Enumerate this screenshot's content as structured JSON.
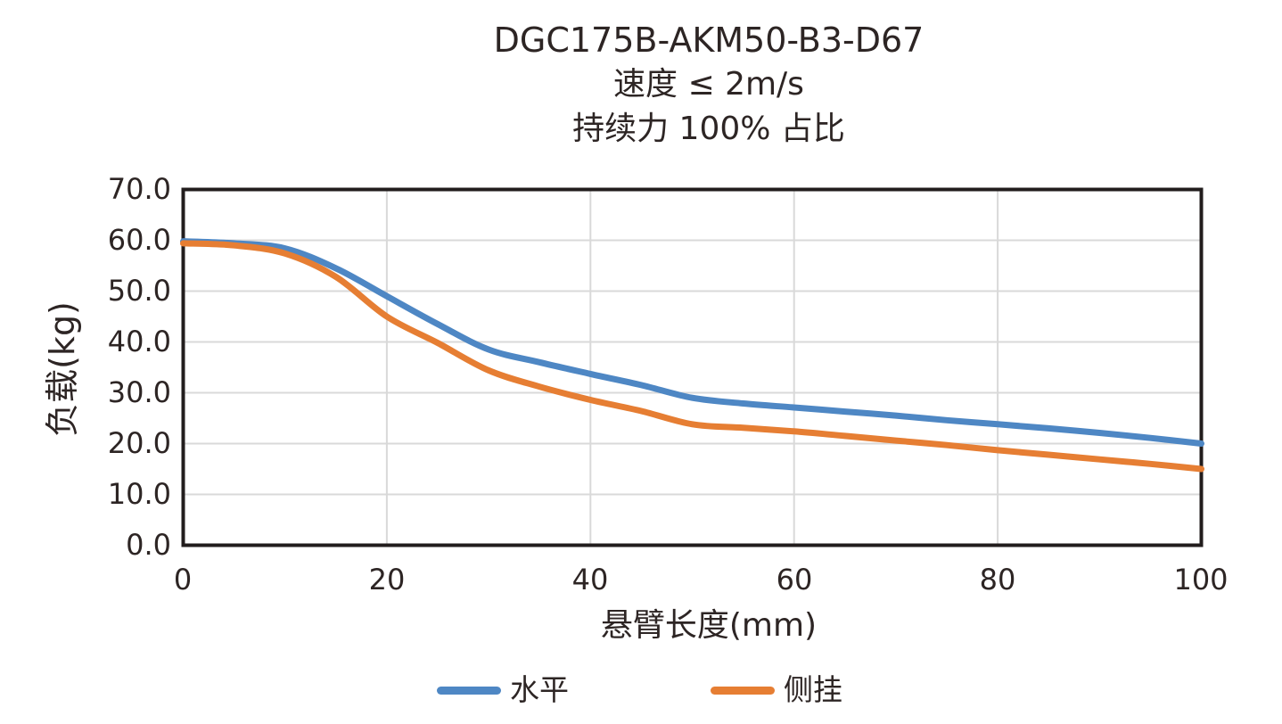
{
  "chart_data": {
    "type": "line",
    "title": "DGC175B-AKM50-B3-D67",
    "subtitle": "速度 ≤ 2m/s",
    "subtitle2": "持续力 100% 占比",
    "xlabel": "悬臂长度(mm)",
    "ylabel": "负载(kg)",
    "xlim": [
      0,
      100
    ],
    "ylim": [
      0,
      70
    ],
    "x_ticks": [
      "0",
      "20",
      "40",
      "60",
      "80",
      "100"
    ],
    "y_ticks": [
      "70.0",
      "60.0",
      "50.0",
      "40.0",
      "30.0",
      "20.0",
      "10.0",
      "0.0"
    ],
    "grid": true,
    "legend_position": "bottom",
    "x": [
      0,
      5,
      10,
      15,
      20,
      25,
      30,
      35,
      40,
      45,
      50,
      55,
      60,
      65,
      70,
      75,
      80,
      85,
      90,
      95,
      100
    ],
    "series": [
      {
        "name": "水平",
        "color": "#4E87C4",
        "values": [
          59.8,
          59.4,
          58.4,
          54.5,
          49.0,
          43.5,
          38.5,
          36.0,
          33.7,
          31.5,
          29.0,
          27.9,
          27.1,
          26.3,
          25.5,
          24.6,
          23.8,
          23.0,
          22.1,
          21.1,
          20.0
        ]
      },
      {
        "name": "侧挂",
        "color": "#E67E33",
        "values": [
          59.4,
          59.0,
          57.4,
          52.8,
          45.0,
          39.8,
          34.4,
          31.2,
          28.6,
          26.4,
          23.8,
          23.1,
          22.4,
          21.5,
          20.6,
          19.7,
          18.7,
          17.8,
          16.9,
          16.0,
          15.0
        ]
      }
    ],
    "styles": {
      "grid_color": "#d9d9d9",
      "border_color": "#221d1d",
      "text_color": "#2d2524"
    }
  }
}
